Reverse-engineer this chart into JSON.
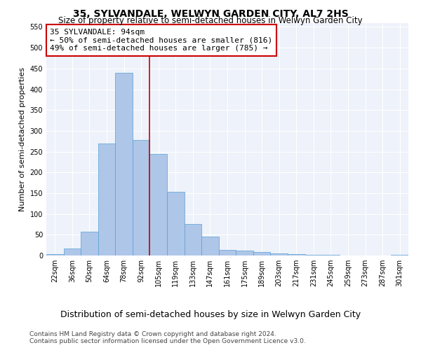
{
  "title": "35, SYLVANDALE, WELWYN GARDEN CITY, AL7 2HS",
  "subtitle": "Size of property relative to semi-detached houses in Welwyn Garden City",
  "xlabel": "Distribution of semi-detached houses by size in Welwyn Garden City",
  "ylabel": "Number of semi-detached properties",
  "footnote1": "Contains HM Land Registry data © Crown copyright and database right 2024.",
  "footnote2": "Contains public sector information licensed under the Open Government Licence v3.0.",
  "annotation_title": "35 SYLVANDALE: 94sqm",
  "annotation_line1": "← 50% of semi-detached houses are smaller (816)",
  "annotation_line2": "49% of semi-detached houses are larger (785) →",
  "bar_labels": [
    "22sqm",
    "36sqm",
    "50sqm",
    "64sqm",
    "78sqm",
    "92sqm",
    "105sqm",
    "119sqm",
    "133sqm",
    "147sqm",
    "161sqm",
    "175sqm",
    "189sqm",
    "203sqm",
    "217sqm",
    "231sqm",
    "245sqm",
    "259sqm",
    "273sqm",
    "287sqm",
    "301sqm"
  ],
  "bar_values": [
    3,
    17,
    57,
    270,
    440,
    278,
    245,
    153,
    76,
    45,
    13,
    11,
    8,
    5,
    3,
    2,
    1,
    0,
    0,
    0,
    1
  ],
  "bar_color": "#aec6e8",
  "bar_edge_color": "#5a9fd4",
  "vline_color": "#cc0000",
  "vline_x": 5.5,
  "ylim": [
    0,
    560
  ],
  "yticks": [
    0,
    50,
    100,
    150,
    200,
    250,
    300,
    350,
    400,
    450,
    500,
    550
  ],
  "bg_color": "#eef2fa",
  "grid_color": "#ffffff",
  "title_fontsize": 10,
  "subtitle_fontsize": 8.5,
  "xlabel_fontsize": 9,
  "ylabel_fontsize": 8,
  "tick_fontsize": 7,
  "annotation_fontsize": 8,
  "footnote_fontsize": 6.5
}
